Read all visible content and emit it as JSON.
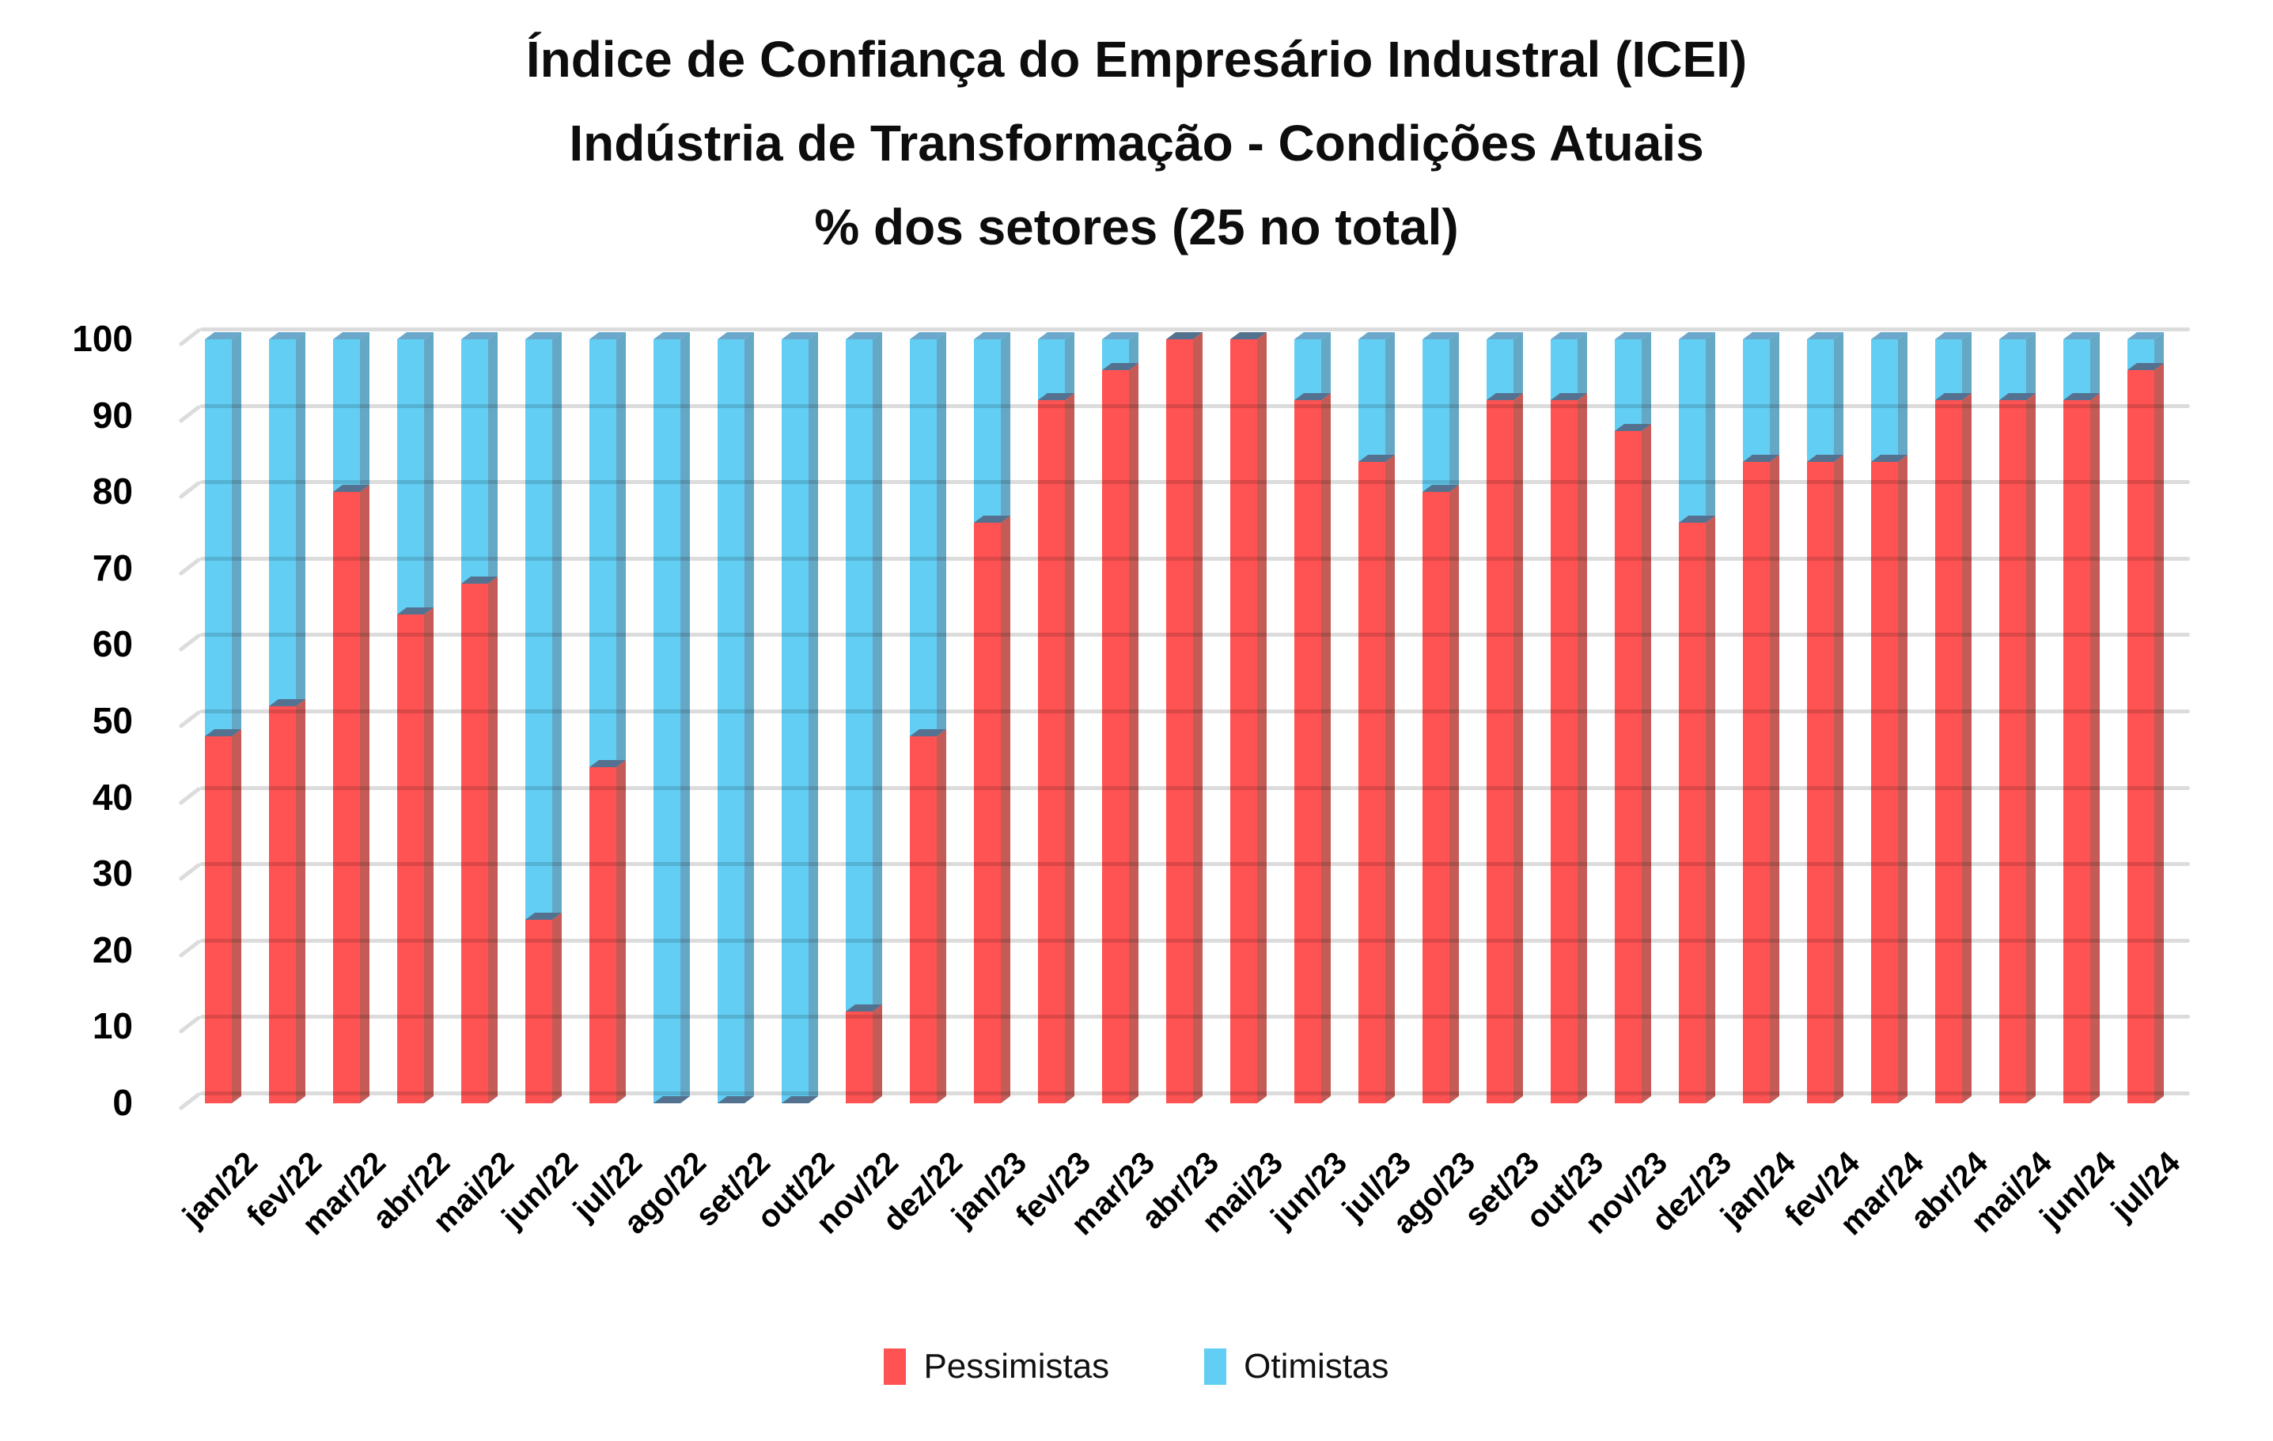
{
  "page": {
    "background": "#FFFFFF"
  },
  "title": {
    "line1": "Índice de Confiança do Empresário Industral (ICEI)",
    "line2": "Indústria de Transformação - Condições Atuais",
    "line3": "% dos setores (25 no total)"
  },
  "legend": {
    "items": [
      {
        "label": "Pessimistas",
        "color": "#FF5252"
      },
      {
        "label": "Otimistas",
        "color": "#62CEF4"
      }
    ]
  },
  "y_axis": {
    "ticks": [
      "100",
      "90",
      "80",
      "70",
      "60",
      "50",
      "40",
      "30",
      "20",
      "10",
      "0"
    ]
  },
  "chart_data": {
    "type": "bar",
    "subtype": "stacked-3d-column",
    "title": "Índice de Confiança do Empresário Industral (ICEI) | Indústria de Transformação - Condições Atuais | % dos setores (25 no total)",
    "xlabel": "",
    "ylabel": "",
    "ylim": [
      0,
      100
    ],
    "y_tick_step": 10,
    "grid": true,
    "legend_position": "bottom",
    "x_label_rotation_deg": -45,
    "gridline_color": "#DCDCDC",
    "segment_boundary_color": "#54728F",
    "categories": [
      "jan/22",
      "fev/22",
      "mar/22",
      "abr/22",
      "mai/22",
      "jun/22",
      "jul/22",
      "ago/22",
      "set/22",
      "out/22",
      "nov/22",
      "dez/22",
      "jan/23",
      "fev/23",
      "mar/23",
      "abr/23",
      "mai/23",
      "jun/23",
      "jul/23",
      "ago/23",
      "set/23",
      "out/23",
      "nov/23",
      "dez/23",
      "jan/24",
      "fev/24",
      "mar/24",
      "abr/24",
      "mai/24",
      "jun/24",
      "jul/24"
    ],
    "series": [
      {
        "name": "Pessimistas",
        "color": "#FF5252",
        "side_color": "#C45B56",
        "values": [
          48,
          52,
          80,
          64,
          68,
          24,
          44,
          0,
          0,
          0,
          12,
          48,
          76,
          92,
          96,
          100,
          100,
          92,
          84,
          80,
          92,
          92,
          88,
          76,
          84,
          84,
          84,
          92,
          92,
          92,
          96
        ]
      },
      {
        "name": "Otimistas",
        "color": "#62CEF4",
        "side_color": "#65A8C6",
        "top_color": "#6CA8CB",
        "values": [
          52,
          48,
          20,
          36,
          32,
          76,
          56,
          100,
          100,
          100,
          88,
          52,
          24,
          8,
          4,
          0,
          0,
          8,
          16,
          20,
          8,
          8,
          12,
          24,
          16,
          16,
          16,
          8,
          8,
          8,
          4
        ]
      }
    ]
  }
}
